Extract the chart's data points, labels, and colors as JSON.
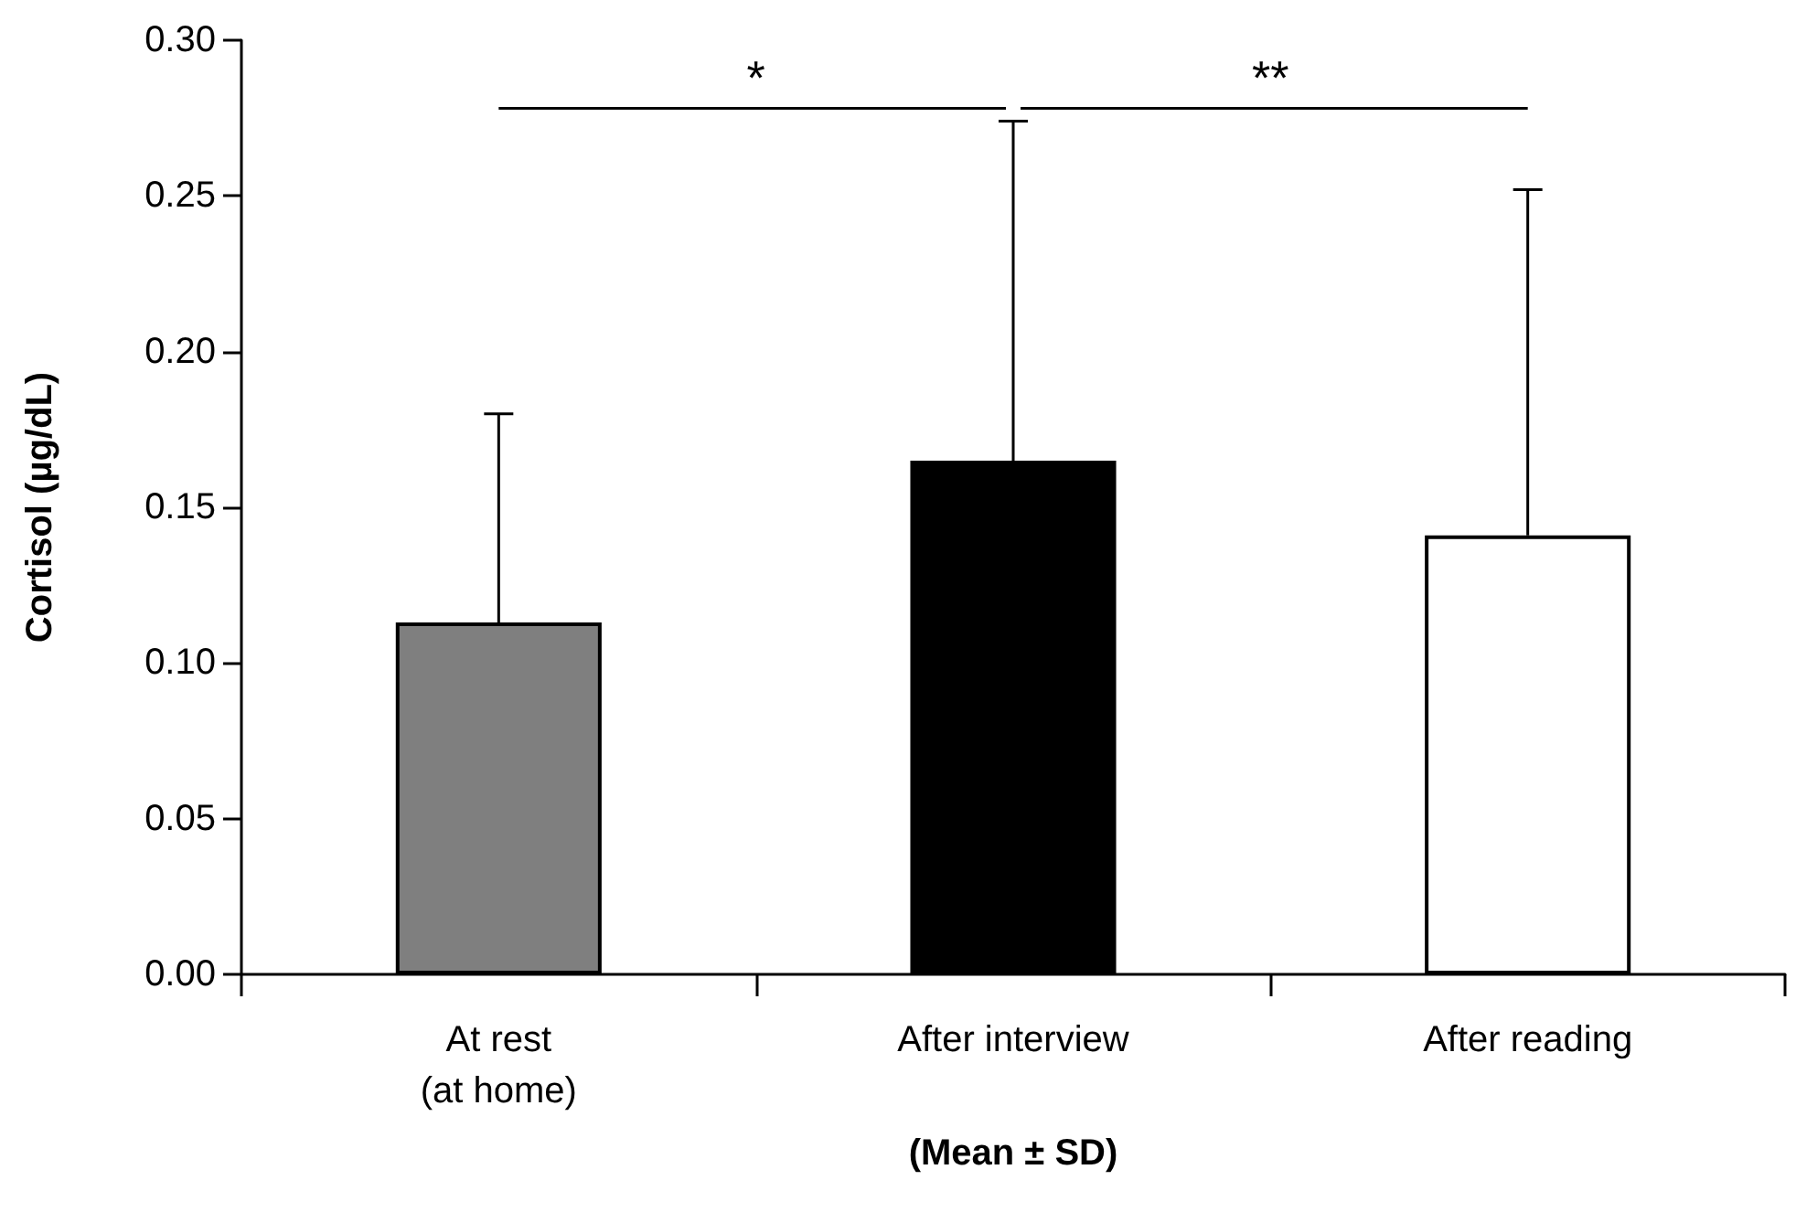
{
  "chart_data": {
    "type": "bar",
    "ylabel": "Cortisol (µg/dL)",
    "xlabel": "(Mean ± SD)",
    "categories": [
      "At rest\n(at home)",
      "After interview",
      "After reading"
    ],
    "values": [
      0.113,
      0.165,
      0.141
    ],
    "colors": [
      "#7f7f7f",
      "#000000",
      "#ffffff"
    ],
    "errors": [
      [
        0.113,
        0.18
      ],
      [
        0.165,
        0.274
      ],
      [
        0.141,
        0.252
      ]
    ],
    "ylim": [
      0,
      0.3
    ],
    "yticks": [
      {
        "value": 0,
        "label": "0.00"
      },
      {
        "value": 0.05,
        "label": "0.05"
      },
      {
        "value": 0.1,
        "label": "0.10"
      },
      {
        "value": 0.15,
        "label": "0.15"
      },
      {
        "value": 0.2,
        "label": "0.20"
      },
      {
        "value": 0.25,
        "label": "0.25"
      },
      {
        "value": 0.3,
        "label": "0.30"
      }
    ],
    "annotations": [
      "*",
      "**"
    ],
    "grid": false
  }
}
